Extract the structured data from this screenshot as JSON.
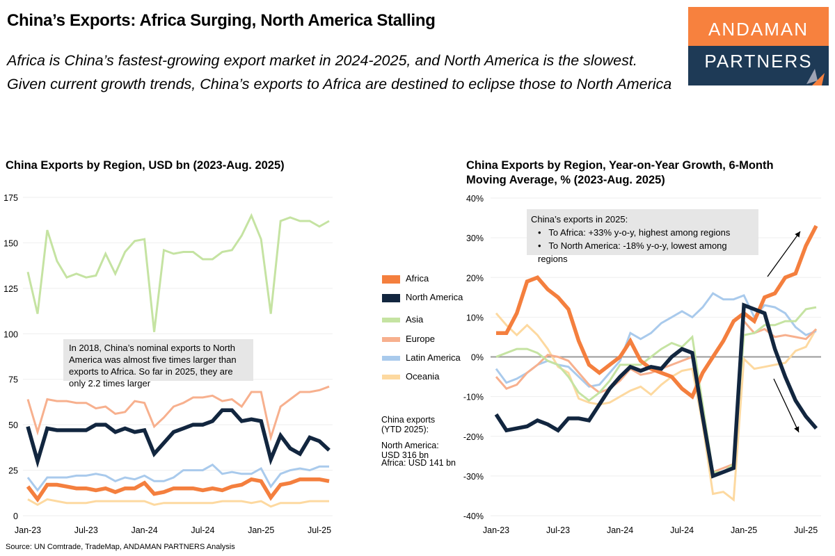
{
  "header": {
    "title": "China’s Exports: Africa Surging, North America Stalling",
    "subtitle": "Africa is China’s fastest-growing export market in 2024-2025, and North America is the slowest. Given current growth trends, China’s exports to Africa are destined to eclipse those to North America"
  },
  "logo": {
    "top": "ANDAMAN",
    "bottom": "PARTNERS",
    "colors": {
      "top": "#f7813e",
      "bottom": "#1e3a56"
    }
  },
  "source": "Source: UN Comtrade, TradeMap, ANDAMAN PARTNERS Analysis",
  "series_colors": {
    "Africa": "#f47f3e",
    "North America": "#12263f",
    "Asia": "#c5e3a2",
    "Europe": "#f7b08e",
    "Latin America": "#a9caec",
    "Oceania": "#fdd9a0"
  },
  "chart_data": [
    {
      "type": "line",
      "title": "China Exports by Region, USD bn (2023-Aug. 2025)",
      "x": [
        "Jan-23",
        "Feb-23",
        "Mar-23",
        "Apr-23",
        "May-23",
        "Jun-23",
        "Jul-23",
        "Aug-23",
        "Sep-23",
        "Oct-23",
        "Nov-23",
        "Dec-23",
        "Jan-24",
        "Feb-24",
        "Mar-24",
        "Apr-24",
        "May-24",
        "Jun-24",
        "Jul-24",
        "Aug-24",
        "Sep-24",
        "Oct-24",
        "Nov-24",
        "Dec-24",
        "Jan-25",
        "Feb-25",
        "Mar-25",
        "Apr-25",
        "May-25",
        "Jun-25",
        "Jul-25",
        "Aug-25"
      ],
      "xticks": [
        "Jan-23",
        "Jul-23",
        "Jan-24",
        "Jul-24",
        "Jan-25",
        "Jul-25"
      ],
      "yticks": [
        "0",
        "25",
        "50",
        "75",
        "100",
        "125",
        "150",
        "175"
      ],
      "ylim": [
        0,
        175
      ],
      "grid": true,
      "legend": "right",
      "series": [
        {
          "name": "Oceania",
          "values": [
            9,
            6,
            9,
            8,
            7,
            7,
            7,
            8,
            8,
            8,
            8,
            8,
            8,
            6,
            7,
            7,
            7,
            7,
            7,
            7,
            8,
            8,
            8,
            7,
            8,
            5,
            7,
            7,
            7,
            8,
            8,
            8
          ]
        },
        {
          "name": "Latin America",
          "values": [
            21,
            14,
            21,
            21,
            21,
            22,
            22,
            23,
            22,
            19,
            21,
            20,
            22,
            19,
            19,
            21,
            25,
            25,
            25,
            28,
            23,
            24,
            23,
            23,
            26,
            16,
            23,
            25,
            26,
            25,
            27,
            27
          ]
        },
        {
          "name": "Europe",
          "values": [
            64,
            46,
            64,
            63,
            63,
            62,
            62,
            59,
            60,
            56,
            57,
            63,
            62,
            49,
            54,
            60,
            62,
            65,
            65,
            66,
            63,
            64,
            60,
            68,
            68,
            43,
            60,
            64,
            68,
            68,
            69,
            71
          ]
        },
        {
          "name": "Asia",
          "values": [
            134,
            111,
            157,
            140,
            131,
            133,
            131,
            132,
            144,
            133,
            145,
            151,
            152,
            101,
            146,
            144,
            145,
            145,
            141,
            141,
            145,
            146,
            154,
            165,
            152,
            111,
            162,
            164,
            162,
            162,
            159,
            162
          ]
        },
        {
          "name": "Africa",
          "values": [
            16,
            9,
            17,
            17,
            16,
            15,
            15,
            14,
            15,
            13,
            15,
            15,
            18,
            12,
            13,
            15,
            15,
            15,
            14,
            15,
            14,
            16,
            17,
            20,
            19,
            10,
            17,
            18,
            20,
            20,
            20,
            19
          ]
        },
        {
          "name": "North America",
          "values": [
            49,
            30,
            48,
            47,
            47,
            47,
            47,
            50,
            50,
            46,
            48,
            46,
            47,
            34,
            40,
            46,
            48,
            50,
            50,
            52,
            58,
            58,
            52,
            53,
            52,
            31,
            44,
            37,
            34,
            43,
            41,
            36
          ]
        }
      ],
      "legend_entries": [
        "Africa",
        "North America",
        "Asia",
        "Europe",
        "Latin America",
        "Oceania"
      ],
      "annotation": "In 2018, China’s nominal exports to North America was almost five times larger than exports to Africa. So far in 2025, they are only 2.2 times larger",
      "labels": {
        "ytd": "China exports (YTD 2025):",
        "north_america": "North America: USD 316 bn",
        "africa": "Africa: USD 141 bn"
      }
    },
    {
      "type": "line",
      "title": "China Exports by Region, Year-on-Year Growth, 6-Month Moving Average, % (2023-Aug. 2025)",
      "x": [
        "Jan-23",
        "Feb-23",
        "Mar-23",
        "Apr-23",
        "May-23",
        "Jun-23",
        "Jul-23",
        "Aug-23",
        "Sep-23",
        "Oct-23",
        "Nov-23",
        "Dec-23",
        "Jan-24",
        "Feb-24",
        "Mar-24",
        "Apr-24",
        "May-24",
        "Jun-24",
        "Jul-24",
        "Aug-24",
        "Sep-24",
        "Oct-24",
        "Nov-24",
        "Dec-24",
        "Jan-25",
        "Feb-25",
        "Mar-25",
        "Apr-25",
        "May-25",
        "Jun-25",
        "Jul-25",
        "Aug-25"
      ],
      "xticks": [
        "Jan-23",
        "Jul-23",
        "Jan-24",
        "Jul-24",
        "Jan-25",
        "Jul-25"
      ],
      "yticks": [
        "-40%",
        "-30%",
        "-20%",
        "-10%",
        "0%",
        "10%",
        "20%",
        "30%",
        "40%"
      ],
      "ylim": [
        -40,
        40
      ],
      "grid": true,
      "series": [
        {
          "name": "Oceania",
          "values": [
            11,
            8,
            5.5,
            8,
            5.5,
            2,
            -2.5,
            -4,
            -10.5,
            -11.5,
            -12,
            -11.5,
            -10,
            -8.5,
            -7.5,
            -9.5,
            -7,
            -5,
            -3.5,
            -3,
            -17,
            -34.5,
            -34,
            -36,
            -0.5,
            -3,
            -2.5,
            -2,
            -1.5,
            1.5,
            2.5,
            7
          ]
        },
        {
          "name": "Latin America",
          "values": [
            -3,
            -6.5,
            -5.5,
            -4,
            -2,
            -1,
            -2,
            -2.5,
            -5,
            -7.5,
            -7,
            -4,
            -1,
            6,
            4.5,
            6,
            8.5,
            10,
            11.5,
            10,
            12.5,
            16,
            14.5,
            14.5,
            15.5,
            10,
            13,
            12.5,
            11,
            7.5,
            5.5,
            6.5
          ]
        },
        {
          "name": "Europe",
          "values": [
            -5,
            -8,
            -7,
            -4,
            -2,
            0.5,
            0,
            -1,
            -4,
            -7,
            -9,
            -8,
            -6,
            -3,
            -4.5,
            -4,
            -3,
            -2,
            -1,
            0,
            -14,
            -29,
            -28,
            -27,
            9,
            6,
            7,
            5,
            5.5,
            5,
            4.5,
            7
          ]
        },
        {
          "name": "Asia",
          "values": [
            0,
            1,
            2,
            2,
            1,
            -1,
            -2,
            -5,
            -9,
            -11,
            -9,
            -6,
            -2,
            -2,
            -2,
            0,
            2,
            3.5,
            2.5,
            5,
            -12,
            -29,
            -29,
            -27,
            5.5,
            6,
            8,
            8,
            9,
            9,
            12,
            12.5
          ]
        },
        {
          "name": "Africa",
          "values": [
            6,
            6,
            11,
            19,
            20,
            17,
            15,
            12,
            4,
            -2,
            -4,
            -2,
            0,
            4,
            -1,
            -3,
            -4,
            -5,
            -8,
            -10,
            -4,
            0,
            4,
            9,
            11,
            9,
            15,
            16,
            20,
            21,
            28,
            33
          ]
        },
        {
          "name": "North America",
          "values": [
            -14.5,
            -18.5,
            -18,
            -17.5,
            -16,
            -17,
            -18.5,
            -15.5,
            -15.5,
            -16,
            -12,
            -8,
            -5,
            -2.5,
            -3.5,
            -2.5,
            -3,
            0,
            2,
            1,
            -15,
            -30,
            -29,
            -28,
            13,
            12,
            11,
            2,
            -5,
            -11,
            -15,
            -18
          ]
        }
      ],
      "annotation": {
        "heading": "China’s exports in 2025:",
        "bullets": [
          "To Africa: +33% y-o-y, highest among regions",
          "To North America: -18% y-o-y, lowest among regions"
        ]
      }
    }
  ]
}
